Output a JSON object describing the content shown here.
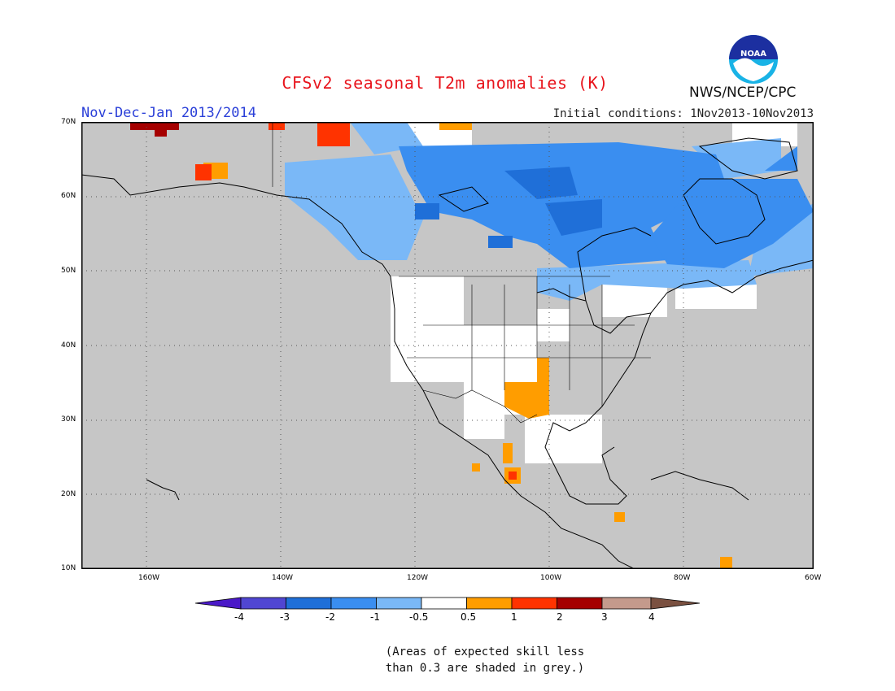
{
  "header": {
    "title": "CFSv2 seasonal T2m anomalies (K)",
    "period": "Nov-Dec-Jan 2013/2014",
    "initial_conditions": "Initial conditions: 1Nov2013-10Nov2013",
    "agency": "NWS/NCEP/CPC",
    "logo_text": "NOAA"
  },
  "map": {
    "lon_labels": [
      "160W",
      "140W",
      "120W",
      "100W",
      "80W",
      "60W"
    ],
    "lat_labels": [
      "70N",
      "60N",
      "50N",
      "40N",
      "30N",
      "20N",
      "10N"
    ]
  },
  "colorbar": {
    "labels": [
      "-4",
      "-3",
      "-2",
      "-1",
      "-0.5",
      "0.5",
      "1",
      "2",
      "3",
      "4"
    ],
    "colors": [
      "#4a19c8",
      "#5046d2",
      "#1f6fd8",
      "#3a8ef0",
      "#7ab8f7",
      "#ffffff",
      "#ff9d00",
      "#ff3300",
      "#a50000",
      "#c49a8c",
      "#7a5040"
    ]
  },
  "footnote": {
    "line1": "(Areas of expected skill less",
    "line2": "than 0.3 are shaded in grey.)"
  }
}
